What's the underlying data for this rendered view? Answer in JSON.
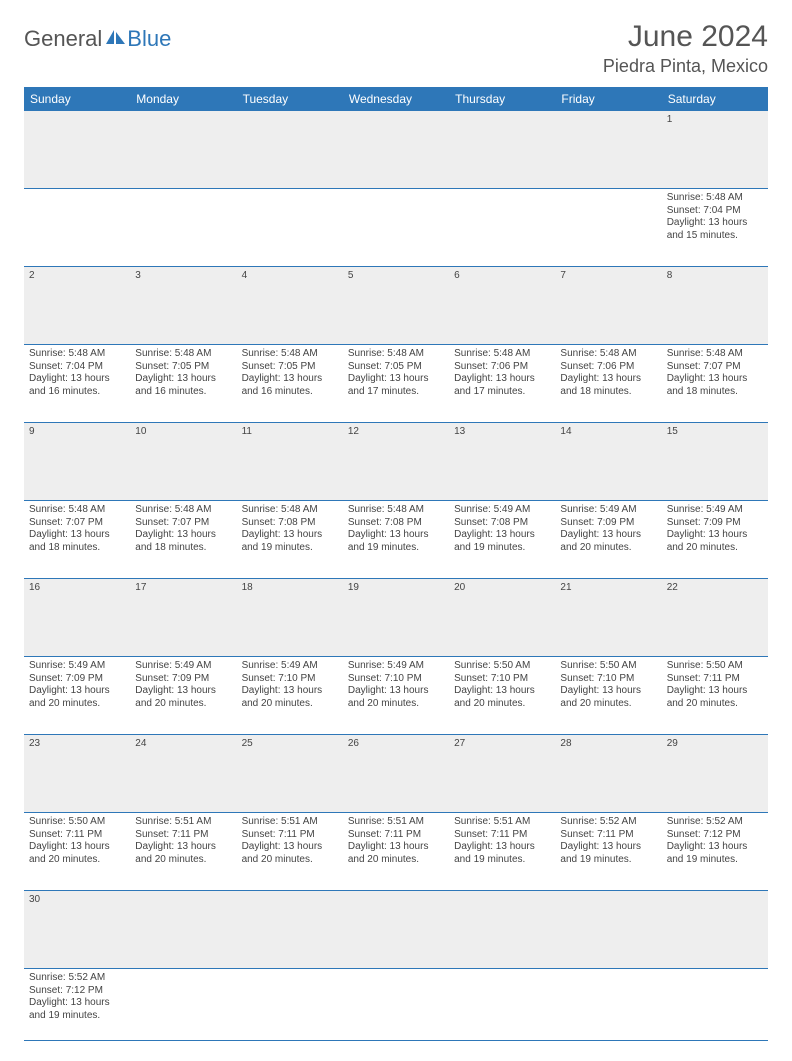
{
  "branding": {
    "name_part1": "General",
    "name_part2": "Blue",
    "color_primary": "#2e77b8",
    "color_text": "#555555"
  },
  "header": {
    "title": "June 2024",
    "location": "Piedra Pinta, Mexico"
  },
  "style": {
    "header_bg": "#2e77b8",
    "header_fg": "#ffffff",
    "daynum_bg": "#eeeeee",
    "cell_border": "#2e77b8",
    "page_bg": "#ffffff",
    "body_text": "#444444",
    "font_family": "Arial",
    "title_fontsize": 30,
    "location_fontsize": 18,
    "th_fontsize": 12,
    "cell_fontsize": 10
  },
  "columns": [
    "Sunday",
    "Monday",
    "Tuesday",
    "Wednesday",
    "Thursday",
    "Friday",
    "Saturday"
  ],
  "first_weekday_index": 6,
  "days": {
    "1": {
      "sunrise": "Sunrise: 5:48 AM",
      "sunset": "Sunset: 7:04 PM",
      "dl1": "Daylight: 13 hours",
      "dl2": "and 15 minutes."
    },
    "2": {
      "sunrise": "Sunrise: 5:48 AM",
      "sunset": "Sunset: 7:04 PM",
      "dl1": "Daylight: 13 hours",
      "dl2": "and 16 minutes."
    },
    "3": {
      "sunrise": "Sunrise: 5:48 AM",
      "sunset": "Sunset: 7:05 PM",
      "dl1": "Daylight: 13 hours",
      "dl2": "and 16 minutes."
    },
    "4": {
      "sunrise": "Sunrise: 5:48 AM",
      "sunset": "Sunset: 7:05 PM",
      "dl1": "Daylight: 13 hours",
      "dl2": "and 16 minutes."
    },
    "5": {
      "sunrise": "Sunrise: 5:48 AM",
      "sunset": "Sunset: 7:05 PM",
      "dl1": "Daylight: 13 hours",
      "dl2": "and 17 minutes."
    },
    "6": {
      "sunrise": "Sunrise: 5:48 AM",
      "sunset": "Sunset: 7:06 PM",
      "dl1": "Daylight: 13 hours",
      "dl2": "and 17 minutes."
    },
    "7": {
      "sunrise": "Sunrise: 5:48 AM",
      "sunset": "Sunset: 7:06 PM",
      "dl1": "Daylight: 13 hours",
      "dl2": "and 18 minutes."
    },
    "8": {
      "sunrise": "Sunrise: 5:48 AM",
      "sunset": "Sunset: 7:07 PM",
      "dl1": "Daylight: 13 hours",
      "dl2": "and 18 minutes."
    },
    "9": {
      "sunrise": "Sunrise: 5:48 AM",
      "sunset": "Sunset: 7:07 PM",
      "dl1": "Daylight: 13 hours",
      "dl2": "and 18 minutes."
    },
    "10": {
      "sunrise": "Sunrise: 5:48 AM",
      "sunset": "Sunset: 7:07 PM",
      "dl1": "Daylight: 13 hours",
      "dl2": "and 18 minutes."
    },
    "11": {
      "sunrise": "Sunrise: 5:48 AM",
      "sunset": "Sunset: 7:08 PM",
      "dl1": "Daylight: 13 hours",
      "dl2": "and 19 minutes."
    },
    "12": {
      "sunrise": "Sunrise: 5:48 AM",
      "sunset": "Sunset: 7:08 PM",
      "dl1": "Daylight: 13 hours",
      "dl2": "and 19 minutes."
    },
    "13": {
      "sunrise": "Sunrise: 5:49 AM",
      "sunset": "Sunset: 7:08 PM",
      "dl1": "Daylight: 13 hours",
      "dl2": "and 19 minutes."
    },
    "14": {
      "sunrise": "Sunrise: 5:49 AM",
      "sunset": "Sunset: 7:09 PM",
      "dl1": "Daylight: 13 hours",
      "dl2": "and 20 minutes."
    },
    "15": {
      "sunrise": "Sunrise: 5:49 AM",
      "sunset": "Sunset: 7:09 PM",
      "dl1": "Daylight: 13 hours",
      "dl2": "and 20 minutes."
    },
    "16": {
      "sunrise": "Sunrise: 5:49 AM",
      "sunset": "Sunset: 7:09 PM",
      "dl1": "Daylight: 13 hours",
      "dl2": "and 20 minutes."
    },
    "17": {
      "sunrise": "Sunrise: 5:49 AM",
      "sunset": "Sunset: 7:09 PM",
      "dl1": "Daylight: 13 hours",
      "dl2": "and 20 minutes."
    },
    "18": {
      "sunrise": "Sunrise: 5:49 AM",
      "sunset": "Sunset: 7:10 PM",
      "dl1": "Daylight: 13 hours",
      "dl2": "and 20 minutes."
    },
    "19": {
      "sunrise": "Sunrise: 5:49 AM",
      "sunset": "Sunset: 7:10 PM",
      "dl1": "Daylight: 13 hours",
      "dl2": "and 20 minutes."
    },
    "20": {
      "sunrise": "Sunrise: 5:50 AM",
      "sunset": "Sunset: 7:10 PM",
      "dl1": "Daylight: 13 hours",
      "dl2": "and 20 minutes."
    },
    "21": {
      "sunrise": "Sunrise: 5:50 AM",
      "sunset": "Sunset: 7:10 PM",
      "dl1": "Daylight: 13 hours",
      "dl2": "and 20 minutes."
    },
    "22": {
      "sunrise": "Sunrise: 5:50 AM",
      "sunset": "Sunset: 7:11 PM",
      "dl1": "Daylight: 13 hours",
      "dl2": "and 20 minutes."
    },
    "23": {
      "sunrise": "Sunrise: 5:50 AM",
      "sunset": "Sunset: 7:11 PM",
      "dl1": "Daylight: 13 hours",
      "dl2": "and 20 minutes."
    },
    "24": {
      "sunrise": "Sunrise: 5:51 AM",
      "sunset": "Sunset: 7:11 PM",
      "dl1": "Daylight: 13 hours",
      "dl2": "and 20 minutes."
    },
    "25": {
      "sunrise": "Sunrise: 5:51 AM",
      "sunset": "Sunset: 7:11 PM",
      "dl1": "Daylight: 13 hours",
      "dl2": "and 20 minutes."
    },
    "26": {
      "sunrise": "Sunrise: 5:51 AM",
      "sunset": "Sunset: 7:11 PM",
      "dl1": "Daylight: 13 hours",
      "dl2": "and 20 minutes."
    },
    "27": {
      "sunrise": "Sunrise: 5:51 AM",
      "sunset": "Sunset: 7:11 PM",
      "dl1": "Daylight: 13 hours",
      "dl2": "and 19 minutes."
    },
    "28": {
      "sunrise": "Sunrise: 5:52 AM",
      "sunset": "Sunset: 7:11 PM",
      "dl1": "Daylight: 13 hours",
      "dl2": "and 19 minutes."
    },
    "29": {
      "sunrise": "Sunrise: 5:52 AM",
      "sunset": "Sunset: 7:12 PM",
      "dl1": "Daylight: 13 hours",
      "dl2": "and 19 minutes."
    },
    "30": {
      "sunrise": "Sunrise: 5:52 AM",
      "sunset": "Sunset: 7:12 PM",
      "dl1": "Daylight: 13 hours",
      "dl2": "and 19 minutes."
    }
  },
  "weeks": [
    [
      null,
      null,
      null,
      null,
      null,
      null,
      "1"
    ],
    [
      "2",
      "3",
      "4",
      "5",
      "6",
      "7",
      "8"
    ],
    [
      "9",
      "10",
      "11",
      "12",
      "13",
      "14",
      "15"
    ],
    [
      "16",
      "17",
      "18",
      "19",
      "20",
      "21",
      "22"
    ],
    [
      "23",
      "24",
      "25",
      "26",
      "27",
      "28",
      "29"
    ],
    [
      "30",
      null,
      null,
      null,
      null,
      null,
      null
    ]
  ]
}
